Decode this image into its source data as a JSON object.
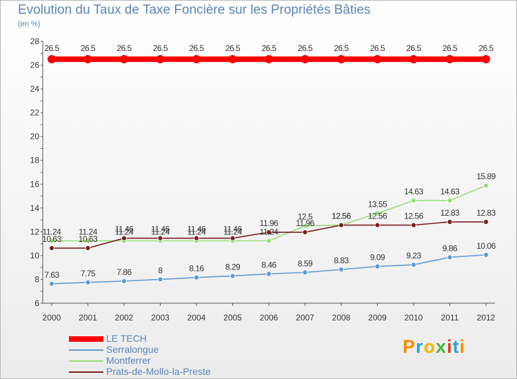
{
  "header": {
    "title": "Evolution du Taux de Taxe Foncière sur les Propriétés Bâties",
    "subtitle": "(en %)"
  },
  "logo": {
    "text": "Proxiti",
    "letter_colors": [
      "#ff8a00",
      "#2aa3d9",
      "#ffb000",
      "#4cb648",
      "#d1432b",
      "#2aa3d9",
      "#ff8a00"
    ]
  },
  "chart_data": {
    "type": "line",
    "title": "Evolution du Taux de Taxe Foncière sur les Propriétés Bâties",
    "subtitle": "(en %)",
    "xlabel": "",
    "ylabel": "",
    "categories": [
      "2000",
      "2001",
      "2002",
      "2003",
      "2004",
      "2005",
      "2006",
      "2007",
      "2008",
      "2009",
      "2010",
      "2011",
      "2012"
    ],
    "ylim": [
      6,
      28
    ],
    "yticks": [
      6,
      8,
      10,
      12,
      14,
      16,
      18,
      20,
      22,
      24,
      26,
      28
    ],
    "grid": false,
    "legend_position": "bottom-left",
    "series": [
      {
        "name": "LE TECH",
        "color": "#ff0000",
        "values": [
          26.5,
          26.5,
          26.5,
          26.5,
          26.5,
          26.5,
          26.5,
          26.5,
          26.5,
          26.5,
          26.5,
          26.5,
          26.5
        ],
        "labels": [
          "26.5",
          "26.5",
          "26.5",
          "26.5",
          "26.5",
          "26.5",
          "26.5",
          "26.5",
          "26.5",
          "26.5",
          "26.5",
          "26.5",
          "26.5"
        ]
      },
      {
        "name": "Serralongue",
        "color": "#5f9bd3",
        "values": [
          7.63,
          7.75,
          7.86,
          8,
          8.16,
          8.29,
          8.46,
          8.59,
          8.83,
          9.09,
          9.23,
          9.86,
          10.06
        ],
        "labels": [
          "7.63",
          "7.75",
          "7.86",
          "8",
          "8.16",
          "8.29",
          "8.46",
          "8.59",
          "8.83",
          "9.09",
          "9.23",
          "9.86",
          "10.06"
        ]
      },
      {
        "name": "Montferrer",
        "color": "#99dd77",
        "values": [
          11.24,
          11.24,
          11.24,
          11.24,
          11.24,
          11.24,
          11.24,
          12.5,
          12.56,
          13.55,
          14.63,
          14.63,
          15.89
        ],
        "labels": [
          "11.24",
          "11.24",
          "11.24",
          "11.24",
          "11.24",
          "11.24",
          "11.24",
          "12.5",
          "12.56",
          "13.55",
          "14.63",
          "14.63",
          "15.89"
        ]
      },
      {
        "name": "Prats-de-Mollo-la-Preste",
        "color": "#7a1f1f",
        "values": [
          10.63,
          10.63,
          11.46,
          11.46,
          11.46,
          11.46,
          11.96,
          11.96,
          12.56,
          12.56,
          12.56,
          12.83,
          12.83
        ],
        "labels": [
          "10.63",
          "10.63",
          "11.46",
          "11.46",
          "11.46",
          "11.46",
          "11.96",
          "11.96",
          "12.56",
          "12.56",
          "12.56",
          "12.83",
          "12.83"
        ]
      }
    ]
  }
}
